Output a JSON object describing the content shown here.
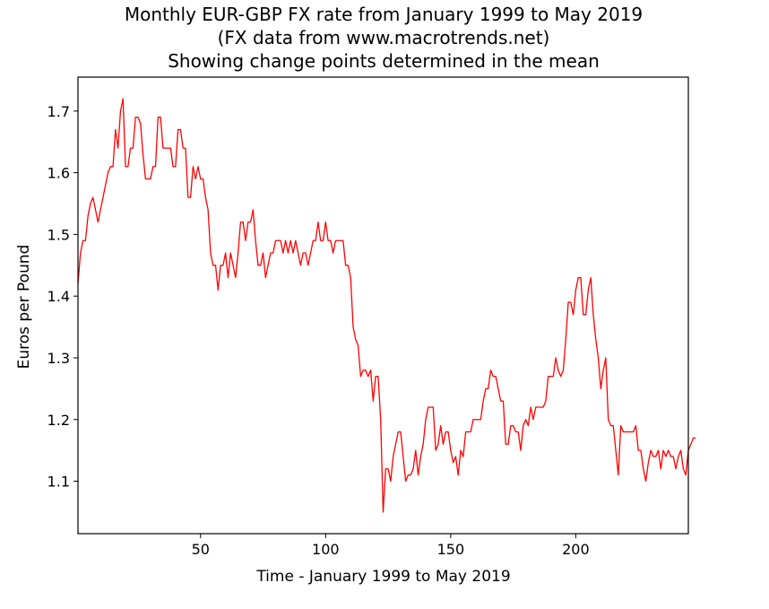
{
  "chart_data": {
    "type": "line",
    "title": [
      "Monthly EUR-GBP FX rate from January 1999 to May 2019",
      "(FX data from www.macrotrends.net)",
      "Showing change points determined in the mean"
    ],
    "xlabel": "Time - January 1999 to May 2019",
    "ylabel": "Euros per Pound",
    "xlim": [
      1,
      245
    ],
    "ylim": [
      1.015,
      1.755
    ],
    "x_ticks": [
      50,
      100,
      150,
      200
    ],
    "y_ticks": [
      1.1,
      1.2,
      1.3,
      1.4,
      1.5,
      1.6,
      1.7
    ],
    "grid": false,
    "line_color": "#ff0000",
    "series": [
      {
        "x_start": 1,
        "values": [
          1.42,
          1.47,
          1.49,
          1.49,
          1.53,
          1.55,
          1.56,
          1.54,
          1.52,
          1.54,
          1.56,
          1.58,
          1.6,
          1.61,
          1.61,
          1.67,
          1.64,
          1.7,
          1.72,
          1.61,
          1.61,
          1.64,
          1.64,
          1.69,
          1.69,
          1.68,
          1.63,
          1.59,
          1.59,
          1.59,
          1.61,
          1.61,
          1.69,
          1.69,
          1.64,
          1.64,
          1.64,
          1.64,
          1.61,
          1.61,
          1.67,
          1.67,
          1.64,
          1.64,
          1.56,
          1.56,
          1.61,
          1.59,
          1.61,
          1.59,
          1.59,
          1.56,
          1.54,
          1.47,
          1.45,
          1.45,
          1.41,
          1.45,
          1.45,
          1.47,
          1.43,
          1.47,
          1.45,
          1.43,
          1.47,
          1.52,
          1.52,
          1.49,
          1.52,
          1.52,
          1.54,
          1.49,
          1.45,
          1.45,
          1.47,
          1.43,
          1.45,
          1.47,
          1.47,
          1.49,
          1.49,
          1.49,
          1.47,
          1.49,
          1.47,
          1.49,
          1.47,
          1.49,
          1.47,
          1.45,
          1.47,
          1.47,
          1.45,
          1.47,
          1.49,
          1.49,
          1.52,
          1.49,
          1.49,
          1.52,
          1.49,
          1.49,
          1.47,
          1.49,
          1.49,
          1.49,
          1.49,
          1.45,
          1.45,
          1.43,
          1.35,
          1.33,
          1.32,
          1.27,
          1.28,
          1.28,
          1.27,
          1.28,
          1.23,
          1.27,
          1.27,
          1.2,
          1.05,
          1.12,
          1.12,
          1.1,
          1.14,
          1.16,
          1.18,
          1.18,
          1.14,
          1.1,
          1.11,
          1.11,
          1.12,
          1.15,
          1.11,
          1.14,
          1.16,
          1.2,
          1.22,
          1.22,
          1.22,
          1.15,
          1.16,
          1.19,
          1.16,
          1.18,
          1.18,
          1.15,
          1.13,
          1.14,
          1.11,
          1.15,
          1.14,
          1.18,
          1.18,
          1.18,
          1.2,
          1.2,
          1.2,
          1.2,
          1.23,
          1.25,
          1.25,
          1.28,
          1.27,
          1.27,
          1.25,
          1.23,
          1.23,
          1.16,
          1.16,
          1.19,
          1.19,
          1.18,
          1.18,
          1.15,
          1.19,
          1.2,
          1.19,
          1.22,
          1.2,
          1.22,
          1.22,
          1.22,
          1.22,
          1.23,
          1.27,
          1.27,
          1.27,
          1.3,
          1.28,
          1.27,
          1.28,
          1.33,
          1.39,
          1.39,
          1.37,
          1.41,
          1.43,
          1.43,
          1.37,
          1.37,
          1.41,
          1.43,
          1.37,
          1.33,
          1.3,
          1.25,
          1.28,
          1.3,
          1.2,
          1.19,
          1.19,
          1.15,
          1.11,
          1.19,
          1.18,
          1.18,
          1.18,
          1.18,
          1.18,
          1.19,
          1.15,
          1.15,
          1.12,
          1.1,
          1.13,
          1.15,
          1.14,
          1.14,
          1.15,
          1.12,
          1.15,
          1.14,
          1.15,
          1.14,
          1.14,
          1.12,
          1.14,
          1.15,
          1.12,
          1.11,
          1.15,
          1.16,
          1.17,
          1.17
        ]
      }
    ]
  }
}
